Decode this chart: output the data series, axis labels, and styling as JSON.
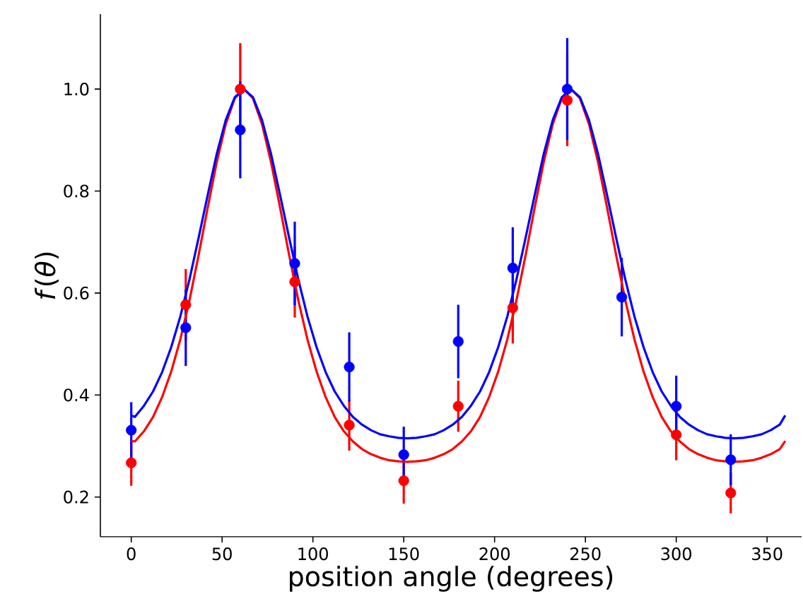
{
  "chart_data": {
    "type": "scatter",
    "xlabel": "position angle (degrees)",
    "ylabel": "*f*(*θ*)",
    "xlim": [
      -17,
      369
    ],
    "ylim": [
      0.122,
      1.147
    ],
    "xticks": [
      0,
      50,
      100,
      150,
      200,
      250,
      300,
      350
    ],
    "yticks": [
      0.2,
      0.4,
      0.6,
      0.8,
      {
        "value": 1,
        "label": "1.0"
      }
    ],
    "grid": false,
    "series": [
      {
        "marker": "circle",
        "color": "#ff0000",
        "x": [
          0,
          30,
          60,
          90,
          120,
          150,
          180,
          210,
          240,
          270,
          300,
          330
        ],
        "values": [
          0.267,
          0.577,
          1.0,
          0.622,
          0.341,
          0.232,
          0.378,
          0.571,
          0.978,
          null,
          0.322,
          0.208
        ],
        "errors": [
          0.045,
          0.07,
          0.09,
          0.07,
          0.05,
          0.045,
          0.05,
          0.07,
          0.09,
          null,
          0.05,
          0.04
        ]
      },
      {
        "marker": "circle",
        "color": "#0000ff",
        "x": [
          0,
          30,
          60,
          90,
          120,
          150,
          180,
          210,
          240,
          270,
          300,
          330
        ],
        "values": [
          0.331,
          0.532,
          0.92,
          0.658,
          0.455,
          0.283,
          0.505,
          0.649,
          1.0,
          0.592,
          0.378,
          0.273
        ],
        "errors": [
          0.055,
          0.075,
          0.095,
          0.082,
          0.068,
          0.055,
          0.072,
          0.08,
          0.1,
          0.077,
          0.06,
          0.05
        ]
      },
      {
        "type": "line",
        "marker": "none",
        "color": "#ff0000",
        "x": [
          0,
          2,
          7,
          12,
          17,
          22,
          27,
          32,
          37,
          42,
          47,
          52,
          57,
          62,
          67,
          72,
          77,
          82,
          87,
          92,
          97,
          102,
          107,
          112,
          117,
          122,
          127,
          132,
          137,
          142,
          147,
          152,
          157,
          162,
          167,
          172,
          177,
          182,
          187,
          192,
          197,
          202,
          207,
          212,
          217,
          222,
          227,
          232,
          237,
          242,
          247,
          252,
          257,
          262,
          267,
          272,
          277,
          282,
          287,
          292,
          297,
          302,
          307,
          312,
          317,
          322,
          327,
          332,
          337,
          342,
          347,
          352,
          357,
          360
        ],
        "values": [
          0.31,
          0.309,
          0.329,
          0.357,
          0.396,
          0.446,
          0.509,
          0.585,
          0.673,
          0.766,
          0.856,
          0.931,
          0.982,
          1.0,
          0.982,
          0.931,
          0.856,
          0.766,
          0.673,
          0.585,
          0.509,
          0.446,
          0.396,
          0.357,
          0.329,
          0.309,
          0.294,
          0.284,
          0.277,
          0.272,
          0.27,
          0.269,
          0.27,
          0.272,
          0.277,
          0.284,
          0.294,
          0.309,
          0.329,
          0.357,
          0.396,
          0.446,
          0.509,
          0.585,
          0.673,
          0.766,
          0.856,
          0.931,
          0.982,
          1.0,
          0.982,
          0.931,
          0.856,
          0.766,
          0.673,
          0.585,
          0.509,
          0.446,
          0.396,
          0.357,
          0.329,
          0.309,
          0.294,
          0.284,
          0.277,
          0.272,
          0.27,
          0.269,
          0.27,
          0.272,
          0.277,
          0.284,
          0.294,
          0.31
        ]
      },
      {
        "type": "line",
        "marker": "none",
        "color": "#0000ff",
        "x": [
          0,
          2,
          7,
          12,
          17,
          22,
          27,
          32,
          37,
          42,
          47,
          52,
          57,
          62,
          67,
          72,
          77,
          82,
          87,
          92,
          97,
          102,
          107,
          112,
          117,
          122,
          127,
          132,
          137,
          142,
          147,
          152,
          157,
          162,
          167,
          172,
          177,
          182,
          187,
          192,
          197,
          202,
          207,
          212,
          217,
          222,
          227,
          232,
          237,
          242,
          247,
          252,
          257,
          262,
          267,
          272,
          277,
          282,
          287,
          292,
          297,
          302,
          307,
          312,
          317,
          322,
          327,
          332,
          337,
          342,
          347,
          352,
          357,
          360
        ],
        "values": [
          0.36,
          0.357,
          0.379,
          0.407,
          0.445,
          0.494,
          0.554,
          0.626,
          0.707,
          0.791,
          0.872,
          0.939,
          0.984,
          1.0,
          0.984,
          0.939,
          0.872,
          0.791,
          0.707,
          0.626,
          0.554,
          0.494,
          0.445,
          0.407,
          0.379,
          0.357,
          0.342,
          0.331,
          0.323,
          0.319,
          0.316,
          0.315,
          0.316,
          0.319,
          0.323,
          0.331,
          0.342,
          0.357,
          0.379,
          0.407,
          0.445,
          0.494,
          0.554,
          0.626,
          0.707,
          0.791,
          0.872,
          0.939,
          0.984,
          1.0,
          0.984,
          0.939,
          0.872,
          0.791,
          0.707,
          0.626,
          0.554,
          0.494,
          0.445,
          0.407,
          0.379,
          0.357,
          0.342,
          0.331,
          0.323,
          0.319,
          0.316,
          0.315,
          0.316,
          0.319,
          0.323,
          0.331,
          0.342,
          0.36
        ]
      }
    ]
  }
}
